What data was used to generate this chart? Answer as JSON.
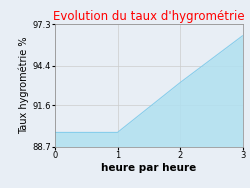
{
  "title": "Evolution du taux d'hygrométrie",
  "title_color": "#ff0000",
  "xlabel": "heure par heure",
  "ylabel": "Taux hygrométrie %",
  "x": [
    0,
    1,
    2,
    3
  ],
  "y": [
    89.7,
    89.7,
    93.2,
    96.5
  ],
  "ylim": [
    88.7,
    97.3
  ],
  "xlim": [
    0,
    3
  ],
  "yticks": [
    88.7,
    91.6,
    94.4,
    97.3
  ],
  "xticks": [
    0,
    1,
    2,
    3
  ],
  "line_color": "#87ceeb",
  "fill_color": "#b0e0f0",
  "fill_alpha": 0.85,
  "bg_color": "#e8eef5",
  "plot_bg_color": "#e8eef5",
  "grid_color": "#cccccc",
  "title_fontsize": 8.5,
  "label_fontsize": 7,
  "tick_fontsize": 6,
  "xlabel_fontsize": 7.5,
  "xlabel_fontweight": "bold"
}
